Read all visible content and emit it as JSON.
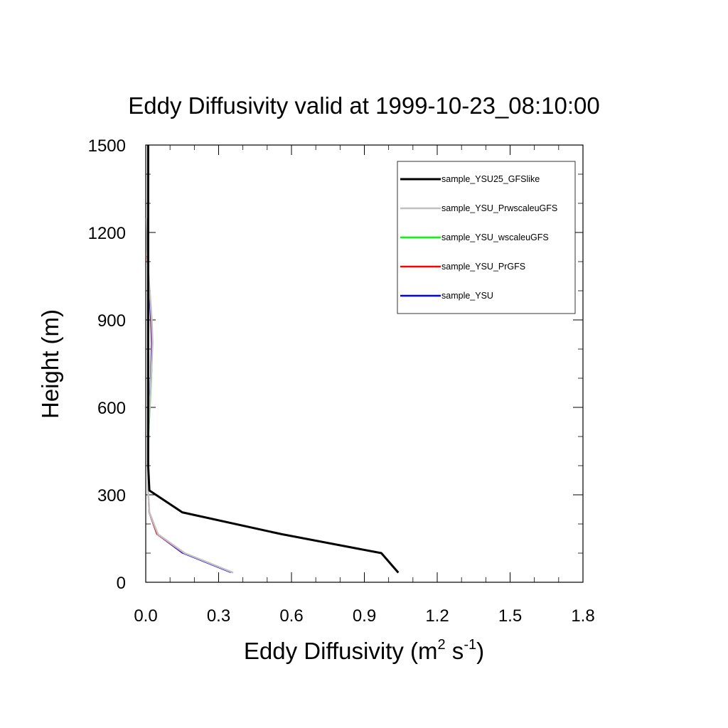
{
  "chart_data": {
    "type": "line",
    "title": "Eddy Diffusivity valid at 1999-10-23_08:10:00",
    "xlabel": "Eddy Diffusivity (m",
    "xlabel_unit": {
      "base1": "Eddy Diffusivity (m",
      "sup1": "2",
      "base2": " s",
      "sup2": "-1",
      "base3": ")"
    },
    "ylabel": "Height (m)",
    "xlim": [
      0,
      1.8
    ],
    "ylim": [
      0,
      1500
    ],
    "xticks": [
      "0.0",
      "0.3",
      "0.6",
      "0.9",
      "1.2",
      "1.5",
      "1.8"
    ],
    "yticks": [
      "0",
      "300",
      "600",
      "900",
      "1200",
      "1500"
    ],
    "legend_position": "top-right",
    "grid": false,
    "series": [
      {
        "name": "sample_YSU25_GFSlike",
        "color": "#000000",
        "points": [
          [
            1.04,
            33
          ],
          [
            0.97,
            100
          ],
          [
            0.56,
            165
          ],
          [
            0.15,
            240
          ],
          [
            0.015,
            315
          ],
          [
            0.01,
            400
          ],
          [
            0.01,
            600
          ],
          [
            0.01,
            900
          ],
          [
            0.01,
            1200
          ],
          [
            0.01,
            1500
          ]
        ]
      },
      {
        "name": "sample_YSU_PrwscaleuGFS",
        "color": "#c0c0c0",
        "points": [
          [
            0.36,
            33
          ],
          [
            0.16,
            100
          ],
          [
            0.05,
            165
          ],
          [
            0.015,
            240
          ],
          [
            0.01,
            315
          ],
          [
            0.01,
            400
          ],
          [
            0.01,
            500
          ],
          [
            0.016,
            600
          ],
          [
            0.022,
            700
          ],
          [
            0.028,
            820
          ],
          [
            0.025,
            900
          ],
          [
            0.012,
            1050
          ],
          [
            0.006,
            1150
          ],
          [
            0.004,
            1250
          ]
        ]
      },
      {
        "name": "sample_YSU_wscaleuGFS",
        "color": "#00ff00",
        "points": [
          [
            0.36,
            33
          ],
          [
            0.16,
            100
          ],
          [
            0.05,
            165
          ],
          [
            0.015,
            240
          ],
          [
            0.01,
            315
          ],
          [
            0.01,
            400
          ],
          [
            0.012,
            500
          ],
          [
            0.018,
            600
          ],
          [
            0.024,
            700
          ],
          [
            0.028,
            820
          ],
          [
            0.024,
            900
          ],
          [
            0.012,
            1050
          ],
          [
            0.006,
            1150
          ]
        ]
      },
      {
        "name": "sample_YSU_PrGFS",
        "color": "#ff0000",
        "points": [
          [
            0.355,
            33
          ],
          [
            0.155,
            100
          ],
          [
            0.045,
            165
          ],
          [
            0.013,
            240
          ],
          [
            0.009,
            315
          ],
          [
            0.009,
            400
          ],
          [
            0.011,
            500
          ],
          [
            0.016,
            600
          ],
          [
            0.021,
            700
          ],
          [
            0.025,
            820
          ],
          [
            0.022,
            900
          ],
          [
            0.011,
            1050
          ],
          [
            0.005,
            1120
          ]
        ]
      },
      {
        "name": "sample_YSU",
        "color": "#0000ff",
        "points": [
          [
            0.35,
            33
          ],
          [
            0.15,
            100
          ],
          [
            0.045,
            165
          ],
          [
            0.013,
            240
          ],
          [
            0.009,
            315
          ],
          [
            0.009,
            400
          ],
          [
            0.01,
            500
          ],
          [
            0.014,
            600
          ],
          [
            0.019,
            700
          ],
          [
            0.023,
            820
          ],
          [
            0.02,
            900
          ],
          [
            0.01,
            1050
          ]
        ]
      }
    ]
  }
}
